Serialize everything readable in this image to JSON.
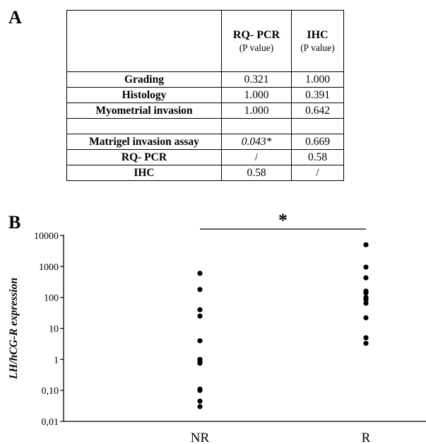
{
  "panel_a": {
    "label": "A",
    "table": {
      "headers": [
        {
          "main": "RQ- PCR",
          "sub": "(P value)"
        },
        {
          "main": "IHC",
          "sub": "(P value)"
        }
      ],
      "rows": [
        {
          "label": "Grading",
          "pcr": "0.321",
          "ihc": "1.000"
        },
        {
          "label": "Histology",
          "pcr": "1.000",
          "ihc": "0.391"
        },
        {
          "label": "Myometrial invasion",
          "pcr": "1.000",
          "ihc": "0.642"
        },
        {
          "label": "",
          "pcr": "",
          "ihc": ""
        },
        {
          "label": "Matrigel invasion assay",
          "pcr": "0.043*",
          "ihc": "0.669"
        },
        {
          "label": "RQ- PCR",
          "pcr": "/",
          "ihc": "0.58"
        },
        {
          "label": "IHC",
          "pcr": "0.58",
          "ihc": "/"
        }
      ]
    }
  },
  "panel_b": {
    "label": "B",
    "significance_marker": "*"
  },
  "chart_data": {
    "type": "scatter",
    "ylabel": "LH/hCG-R expression",
    "yscale": "log",
    "ylim": [
      0.01,
      10000
    ],
    "ytick_labels": [
      "0,01",
      "0,10",
      "1",
      "10",
      "100",
      "1000",
      "10000"
    ],
    "categories": [
      "NR",
      "R"
    ],
    "series": [
      {
        "category": "NR",
        "values": [
          600,
          180,
          40,
          25,
          4,
          1.0,
          0.85,
          0.75,
          0.11,
          0.1,
          0.045,
          0.03
        ]
      },
      {
        "category": "R",
        "values": [
          5000,
          950,
          430,
          160,
          140,
          100,
          85,
          65,
          22,
          5,
          3.3
        ]
      }
    ],
    "dot_color": "#000000"
  }
}
